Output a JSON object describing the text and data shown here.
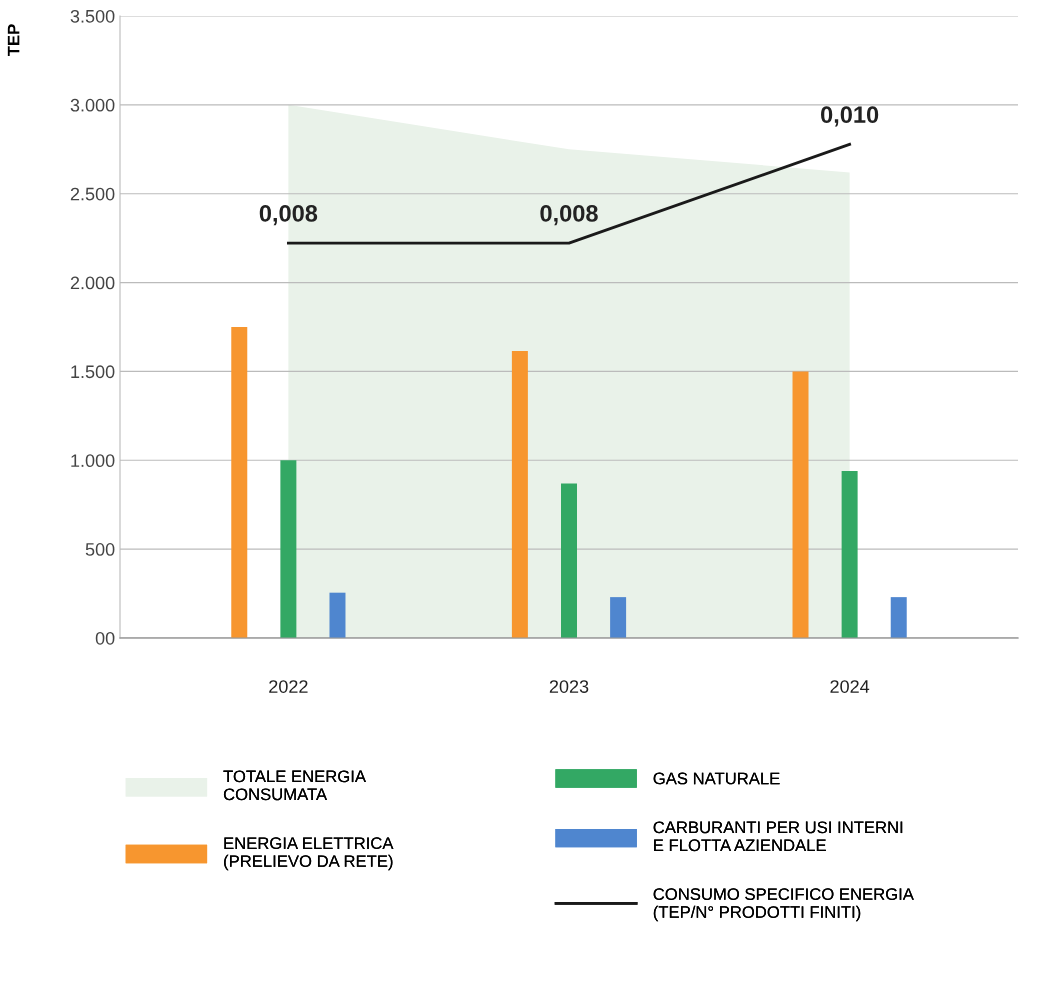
{
  "chart_data": {
    "type": "bar",
    "ylabel": "TEP",
    "categories": [
      "2022",
      "2023",
      "2024"
    ],
    "series": [
      {
        "name": "TOTALE ENERGIA\nCONSUMATA",
        "type": "area",
        "color": "#e9f2e9",
        "values": [
          3000,
          2750,
          2620
        ]
      },
      {
        "name": "ENERGIA ELETTRICA\n(PRELIEVO DA RETE)",
        "color": "#f7962f",
        "values": [
          1750,
          1615,
          1500
        ]
      },
      {
        "name": "GAS NATURALE",
        "color": "#33a864",
        "values": [
          1000,
          870,
          940
        ]
      },
      {
        "name": "CARBURANTI PER USI INTERNI\nE FLOTTA AZIENDALE",
        "color": "#4f86cf",
        "values": [
          255,
          230,
          230
        ]
      },
      {
        "name": "CONSUMO SPECIFICO ENERGIA\n(TEP/N° PRODOTTI FINITI)",
        "type": "line",
        "axis": "y2",
        "color": "#1a1a1a",
        "values": [
          0.008,
          0.008,
          0.01
        ],
        "value_labels": [
          "0,008",
          "0,008",
          "0,010"
        ]
      }
    ],
    "ylim": [
      0,
      3500
    ],
    "yticks": [
      {
        "value": 0,
        "label": "00"
      },
      {
        "value": 500,
        "label": "500"
      },
      {
        "value": 1000,
        "label": "1.000"
      },
      {
        "value": 1500,
        "label": "1.500"
      },
      {
        "value": 2000,
        "label": "2.000"
      },
      {
        "value": 2500,
        "label": "2.500"
      },
      {
        "value": 3000,
        "label": "3.000"
      },
      {
        "value": 3500,
        "label": "3.500"
      }
    ],
    "y2lim": [
      0,
      0.0126
    ],
    "grid": "y",
    "legend": "bottom"
  }
}
